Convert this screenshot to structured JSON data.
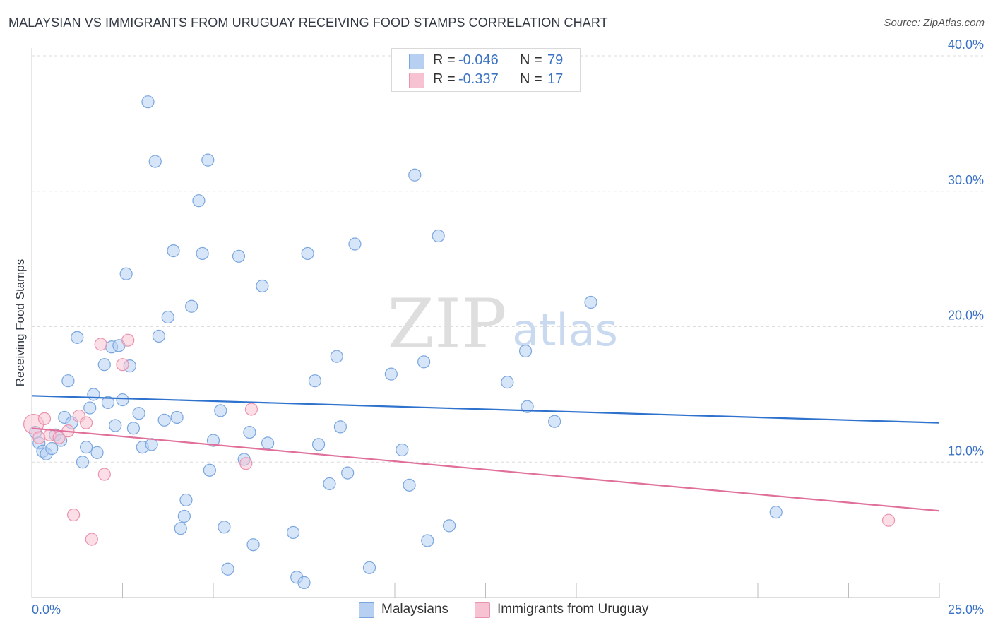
{
  "title": "MALAYSIAN VS IMMIGRANTS FROM URUGUAY RECEIVING FOOD STAMPS CORRELATION CHART",
  "source": "Source: ZipAtlas.com",
  "watermark": {
    "zip": "ZIP",
    "atlas": "atlas"
  },
  "colors": {
    "blue_fill": "#b7d0f2",
    "blue_stroke": "#7aa6e0",
    "blue_line": "#2f72cd",
    "pink_fill": "#f7c3d2",
    "pink_stroke": "#ea93ae",
    "pink_line": "#e0709a",
    "tick_text": "#3a72c4",
    "grid": "#dcdcdc"
  },
  "legend": {
    "rows": [
      {
        "r_label": "R =",
        "r_value": "-0.046",
        "n_label": "N =",
        "n_value": "79"
      },
      {
        "r_label": "R =",
        "r_value": "-0.337",
        "n_label": "N =",
        "n_value": "17"
      }
    ]
  },
  "bottom_legend": {
    "series1": "Malaysians",
    "series2": "Immigrants from Uruguay"
  },
  "chart_data": {
    "type": "scatter",
    "title": "MALAYSIAN VS IMMIGRANTS FROM URUGUAY RECEIVING FOOD STAMPS CORRELATION CHART",
    "xlabel": "",
    "ylabel": "Receiving Food Stamps",
    "xlim": [
      0,
      25
    ],
    "ylim": [
      0,
      40
    ],
    "x_tick_labels": [
      {
        "value": 0,
        "label": "0.0%"
      },
      {
        "value": 25,
        "label": "25.0%"
      }
    ],
    "y_tick_labels": [
      {
        "value": 10,
        "label": "10.0%"
      },
      {
        "value": 20,
        "label": "20.0%"
      },
      {
        "value": 30,
        "label": "30.0%"
      },
      {
        "value": 40,
        "label": "40.0%"
      }
    ],
    "x_minor_ticks": [
      2.5,
      5,
      7.5,
      10,
      12.5,
      15,
      17.5,
      20,
      22.5,
      25
    ],
    "series": [
      {
        "name": "Malaysians",
        "R": -0.046,
        "N": 79,
        "trend": {
          "x": [
            0,
            25
          ],
          "y": [
            14.9,
            12.9
          ]
        },
        "points": [
          [
            0.1,
            12.2
          ],
          [
            0.2,
            11.4
          ],
          [
            0.3,
            10.8
          ],
          [
            0.4,
            10.6
          ],
          [
            0.55,
            11.0
          ],
          [
            0.65,
            12.0
          ],
          [
            0.8,
            11.6
          ],
          [
            0.9,
            13.3
          ],
          [
            1.0,
            16.0
          ],
          [
            1.1,
            12.9
          ],
          [
            1.25,
            19.2
          ],
          [
            1.4,
            10.0
          ],
          [
            1.5,
            11.1
          ],
          [
            1.6,
            14.0
          ],
          [
            1.7,
            15.0
          ],
          [
            1.8,
            10.7
          ],
          [
            2.0,
            17.2
          ],
          [
            2.1,
            14.4
          ],
          [
            2.2,
            18.5
          ],
          [
            2.3,
            12.7
          ],
          [
            2.4,
            18.6
          ],
          [
            2.5,
            14.6
          ],
          [
            2.6,
            23.9
          ],
          [
            2.7,
            17.1
          ],
          [
            2.8,
            12.5
          ],
          [
            2.95,
            13.6
          ],
          [
            3.05,
            11.1
          ],
          [
            3.2,
            36.6
          ],
          [
            3.3,
            11.3
          ],
          [
            3.4,
            32.2
          ],
          [
            3.5,
            19.3
          ],
          [
            3.65,
            13.1
          ],
          [
            3.75,
            20.7
          ],
          [
            3.9,
            25.6
          ],
          [
            4.0,
            13.3
          ],
          [
            4.1,
            5.1
          ],
          [
            4.2,
            6.0
          ],
          [
            4.25,
            7.2
          ],
          [
            4.4,
            21.5
          ],
          [
            4.6,
            29.3
          ],
          [
            4.7,
            25.4
          ],
          [
            4.85,
            32.3
          ],
          [
            4.9,
            9.4
          ],
          [
            5.0,
            11.6
          ],
          [
            5.2,
            13.8
          ],
          [
            5.3,
            5.2
          ],
          [
            5.4,
            2.1
          ],
          [
            5.7,
            25.2
          ],
          [
            5.85,
            10.2
          ],
          [
            6.0,
            12.2
          ],
          [
            6.1,
            3.9
          ],
          [
            6.35,
            23.0
          ],
          [
            6.5,
            11.4
          ],
          [
            7.2,
            4.8
          ],
          [
            7.3,
            1.5
          ],
          [
            7.5,
            1.1
          ],
          [
            7.6,
            25.4
          ],
          [
            7.8,
            16.0
          ],
          [
            7.9,
            11.3
          ],
          [
            8.2,
            8.4
          ],
          [
            8.4,
            17.8
          ],
          [
            8.5,
            12.6
          ],
          [
            8.7,
            9.2
          ],
          [
            8.9,
            26.1
          ],
          [
            9.3,
            2.2
          ],
          [
            9.9,
            16.5
          ],
          [
            10.2,
            10.9
          ],
          [
            10.4,
            8.3
          ],
          [
            10.55,
            31.2
          ],
          [
            10.8,
            17.4
          ],
          [
            10.9,
            4.2
          ],
          [
            11.2,
            26.7
          ],
          [
            11.5,
            5.3
          ],
          [
            13.1,
            15.9
          ],
          [
            13.6,
            18.2
          ],
          [
            13.65,
            14.1
          ],
          [
            14.4,
            13.0
          ],
          [
            15.4,
            21.8
          ],
          [
            20.5,
            6.3
          ]
        ]
      },
      {
        "name": "Immigrants from Uruguay",
        "R": -0.337,
        "N": 17,
        "trend": {
          "x": [
            0,
            25
          ],
          "y": [
            12.5,
            6.4
          ]
        },
        "points": [
          [
            0.05,
            12.8
          ],
          [
            0.2,
            11.8
          ],
          [
            0.5,
            12.0
          ],
          [
            0.75,
            11.8
          ],
          [
            1.0,
            12.3
          ],
          [
            1.15,
            6.1
          ],
          [
            1.3,
            13.4
          ],
          [
            1.5,
            12.9
          ],
          [
            1.65,
            4.3
          ],
          [
            1.9,
            18.7
          ],
          [
            2.0,
            9.1
          ],
          [
            2.5,
            17.2
          ],
          [
            2.65,
            19.0
          ],
          [
            5.9,
            9.9
          ],
          [
            6.05,
            13.9
          ],
          [
            23.6,
            5.7
          ],
          [
            0.35,
            13.2
          ]
        ]
      }
    ]
  }
}
